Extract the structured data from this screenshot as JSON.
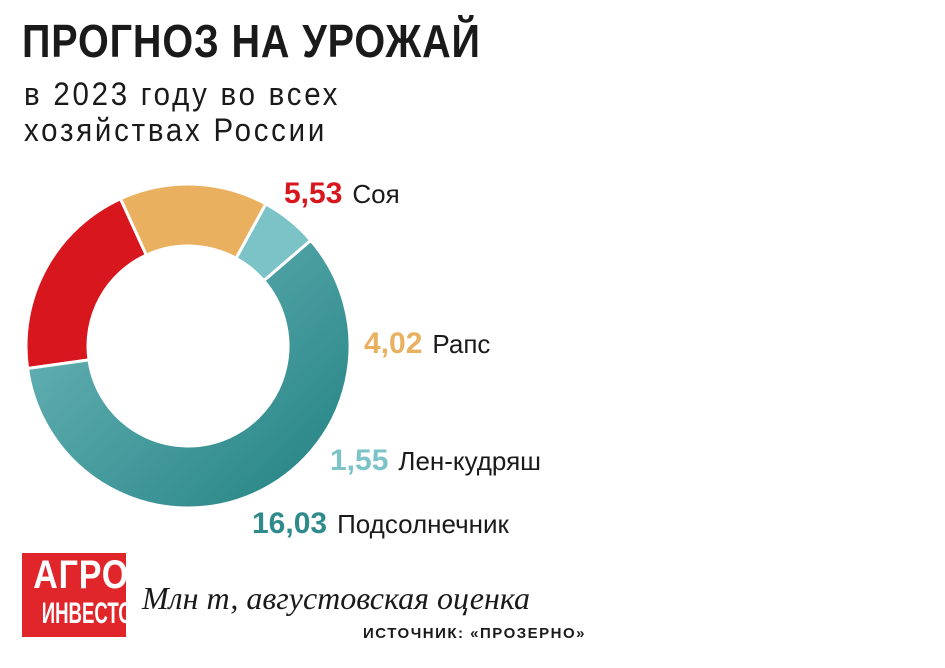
{
  "title": "ПРОГНОЗ НА УРОЖАЙ",
  "subtitle": "в 2023 году во всех хозяйствах России",
  "chart_data": {
    "type": "pie",
    "donut": true,
    "slices": [
      {
        "label": "Соя",
        "value": 5.53,
        "value_text": "5,53",
        "color": "#d7171d",
        "label_color": "#d7171d"
      },
      {
        "label": "Рапс",
        "value": 4.02,
        "value_text": "4,02",
        "color": "#e9b05f",
        "label_color": "#e9b05f"
      },
      {
        "label": "Лен-кудряш",
        "value": 1.55,
        "value_text": "1,55",
        "color": "#7cc3c8",
        "label_color": "#7cc3c8"
      },
      {
        "label": "Подсолнечник",
        "value": 16.03,
        "value_text": "16,03",
        "color": "#2e8a8b",
        "label_color": "#2e8a8b",
        "gradient_to": "#72babe"
      }
    ]
  },
  "logo": {
    "top": "АГРО",
    "bottom": "ИНВЕСТОР",
    "color": "#e1262b"
  },
  "units": "Млн т, августовская оценка",
  "source": "ИСТОЧНИК: «ПРОЗЕРНО»"
}
